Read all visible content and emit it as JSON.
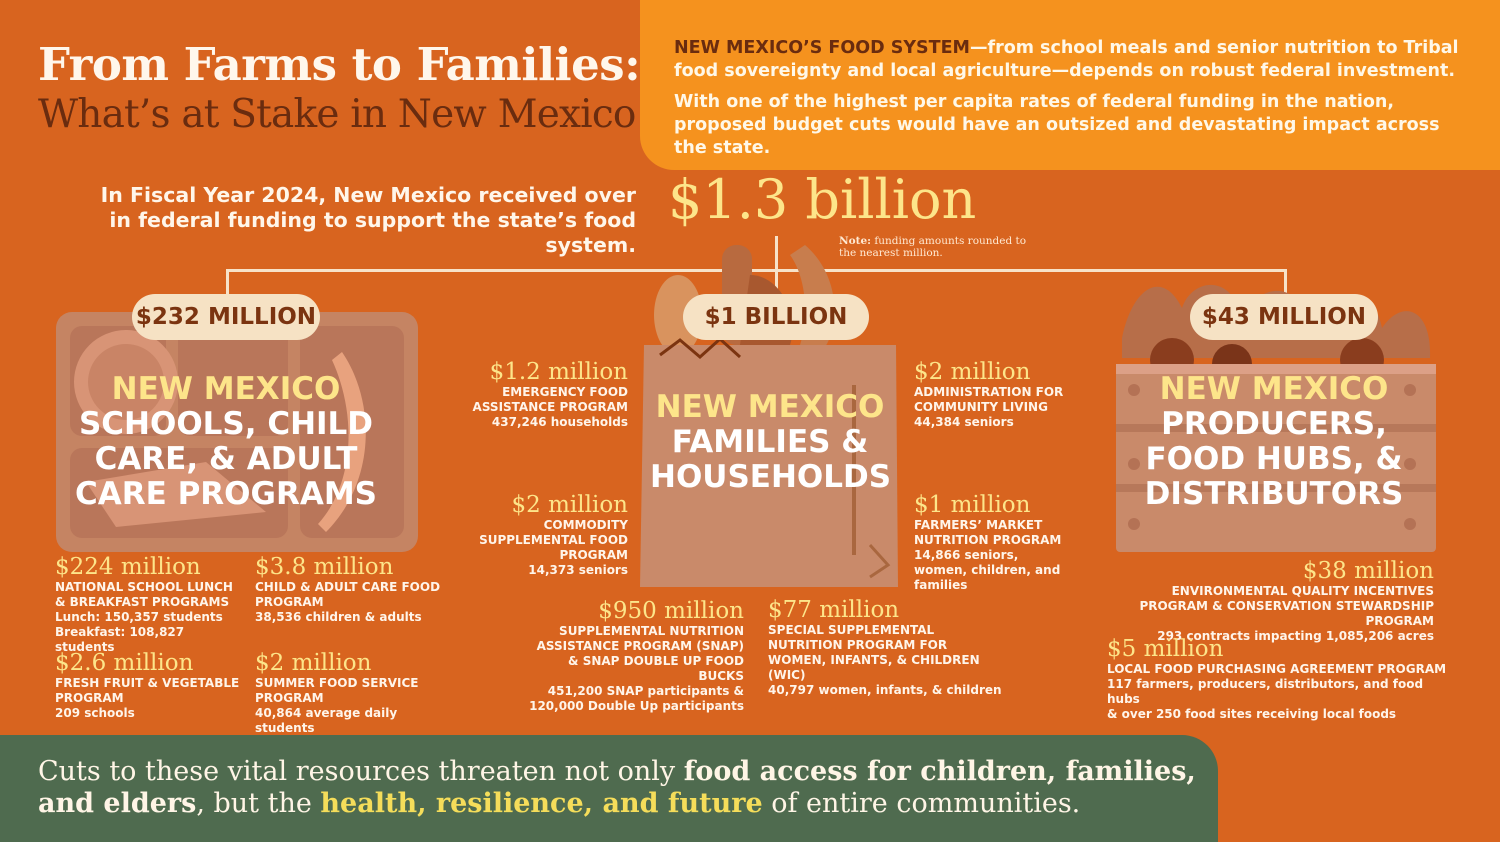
{
  "title": {
    "line1": "From Farms to Families:",
    "line2": "What’s at Stake in New Mexico"
  },
  "intro": {
    "lead": "NEW MEXICO’S FOOD SYSTEM",
    "p1_rest": "—from school meals and senior nutrition to Tribal food sovereignty and local agriculture—depends on robust federal investment.",
    "p2": "With one of the highest per capita rates of federal funding in the nation, proposed budget cuts would have an outsized and devastating impact across the state."
  },
  "funding": {
    "line1": "In Fiscal Year 2024, New Mexico received over",
    "line2": "in federal funding to support the state’s food system.",
    "total": "$1.3 billion",
    "note_label": "Note:",
    "note_text": "funding amounts rounded to the nearest million."
  },
  "categories": [
    {
      "pill": "$232 MILLION",
      "title_highlight": "NEW MEXICO",
      "title_rest": "SCHOOLS, CHILD CARE, & ADULT CARE PROGRAMS",
      "items": [
        {
          "amount": "$224 million",
          "program": "NATIONAL SCHOOL LUNCH & BREAKFAST PROGRAMS",
          "detail": "Lunch: 150,357 students",
          "detail2": "Breakfast: 108,827 students"
        },
        {
          "amount": "$3.8 million",
          "program": "CHILD & ADULT CARE FOOD PROGRAM",
          "detail": "38,536 children & adults"
        },
        {
          "amount": "$2.6 million",
          "program": "FRESH FRUIT & VEGETABLE PROGRAM",
          "detail": "209 schools"
        },
        {
          "amount": "$2 million",
          "program": "SUMMER FOOD SERVICE PROGRAM",
          "detail": "40,864 average daily students"
        }
      ]
    },
    {
      "pill": "$1 BILLION",
      "title_highlight": "NEW MEXICO",
      "title_rest": "FAMILIES & HOUSEHOLDS",
      "items": [
        {
          "amount": "$1.2 million",
          "program": "EMERGENCY FOOD ASSISTANCE PROGRAM",
          "detail": "437,246 households"
        },
        {
          "amount": "$2 million",
          "program": "COMMODITY SUPPLEMENTAL FOOD PROGRAM",
          "detail": "14,373 seniors"
        },
        {
          "amount": "$950 million",
          "program": "SUPPLEMENTAL NUTRITION ASSISTANCE PROGRAM (SNAP) & SNAP DOUBLE UP FOOD BUCKS",
          "detail": "451,200 SNAP participants &",
          "detail2": "120,000 Double Up participants"
        },
        {
          "amount": "$2 million",
          "program": "ADMINISTRATION FOR COMMUNITY LIVING",
          "detail": "44,384 seniors"
        },
        {
          "amount": "$1 million",
          "program": "FARMERS’ MARKET NUTRITION PROGRAM",
          "detail": "14,866 seniors, women, children, and families"
        },
        {
          "amount": "$77 million",
          "program": "SPECIAL SUPPLEMENTAL NUTRITION PROGRAM FOR WOMEN, INFANTS, & CHILDREN (WIC)",
          "detail": "40,797 women, infants, & children"
        }
      ]
    },
    {
      "pill": "$43 MILLION",
      "title_highlight": "NEW MEXICO",
      "title_rest": "PRODUCERS, FOOD HUBS, & DISTRIBUTORS",
      "items": [
        {
          "amount": "$38 million",
          "program": "ENVIRONMENTAL QUALITY INCENTIVES PROGRAM & CONSERVATION STEWARDSHIP PROGRAM",
          "detail": "293 contracts impacting 1,085,206 acres"
        },
        {
          "amount": "$5 million",
          "program": "LOCAL FOOD PURCHASING AGREEMENT PROGRAM",
          "detail": "117 farmers, producers, distributors, and food hubs",
          "detail2": "& over 250 food sites receiving local foods"
        }
      ]
    }
  ],
  "footer": {
    "t1": "Cuts to these vital resources threaten not only ",
    "b1": "food access for children, families, and elders",
    "t2": ", but the ",
    "y1": "health, resilience, and future",
    "t3": " of entire communities."
  },
  "colors": {
    "background": "#d8641f",
    "accent_orange": "#f5921e",
    "highlight_yellow": "#fde58a",
    "footer_green": "#4f6b4f",
    "pill_cream": "#f6e2c4"
  }
}
